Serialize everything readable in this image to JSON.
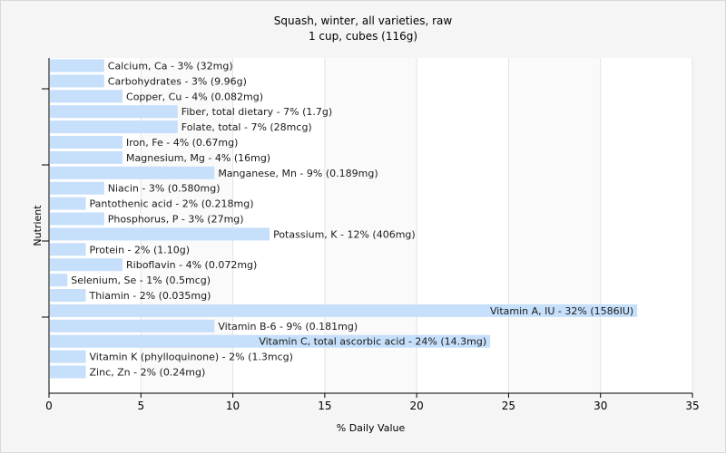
{
  "chart_data": {
    "type": "bar",
    "orientation": "horizontal",
    "title": "Squash, winter, all varieties, raw",
    "subtitle": "1 cup, cubes (116g)",
    "xlabel": "% Daily Value",
    "ylabel": "Nutrient",
    "xlim": [
      0,
      35
    ],
    "xticks": [
      0,
      5,
      10,
      15,
      20,
      25,
      30,
      35
    ],
    "grid": true,
    "bar_color": "#c6dffa",
    "categories": [
      "Calcium, Ca",
      "Carbohydrates",
      "Copper, Cu",
      "Fiber, total dietary",
      "Folate, total",
      "Iron, Fe",
      "Magnesium, Mg",
      "Manganese, Mn",
      "Niacin",
      "Pantothenic acid",
      "Phosphorus, P",
      "Potassium, K",
      "Protein",
      "Riboflavin",
      "Selenium, Se",
      "Thiamin",
      "Vitamin A, IU",
      "Vitamin B-6",
      "Vitamin C, total ascorbic acid",
      "Vitamin K (phylloquinone)",
      "Zinc, Zn"
    ],
    "values": [
      3,
      3,
      4,
      7,
      7,
      4,
      4,
      9,
      3,
      2,
      3,
      12,
      2,
      4,
      1,
      2,
      32,
      9,
      24,
      2,
      2
    ],
    "data_labels": [
      "Calcium, Ca - 3% (32mg)",
      "Carbohydrates - 3% (9.96g)",
      "Copper, Cu - 4% (0.082mg)",
      "Fiber, total dietary - 7% (1.7g)",
      "Folate, total - 7% (28mcg)",
      "Iron, Fe - 4% (0.67mg)",
      "Magnesium, Mg - 4% (16mg)",
      "Manganese, Mn - 9% (0.189mg)",
      "Niacin - 3% (0.580mg)",
      "Pantothenic acid - 2% (0.218mg)",
      "Phosphorus, P - 3% (27mg)",
      "Potassium, K - 12% (406mg)",
      "Protein - 2% (1.10g)",
      "Riboflavin - 4% (0.072mg)",
      "Selenium, Se - 1% (0.5mcg)",
      "Thiamin - 2% (0.035mg)",
      "Vitamin A, IU - 32% (1586IU)",
      "Vitamin B-6 - 9% (0.181mg)",
      "Vitamin C, total ascorbic acid - 24% (14.3mg)",
      "Vitamin K (phylloquinone) - 2% (1.3mcg)",
      "Zinc, Zn - 2% (0.24mg)"
    ]
  }
}
